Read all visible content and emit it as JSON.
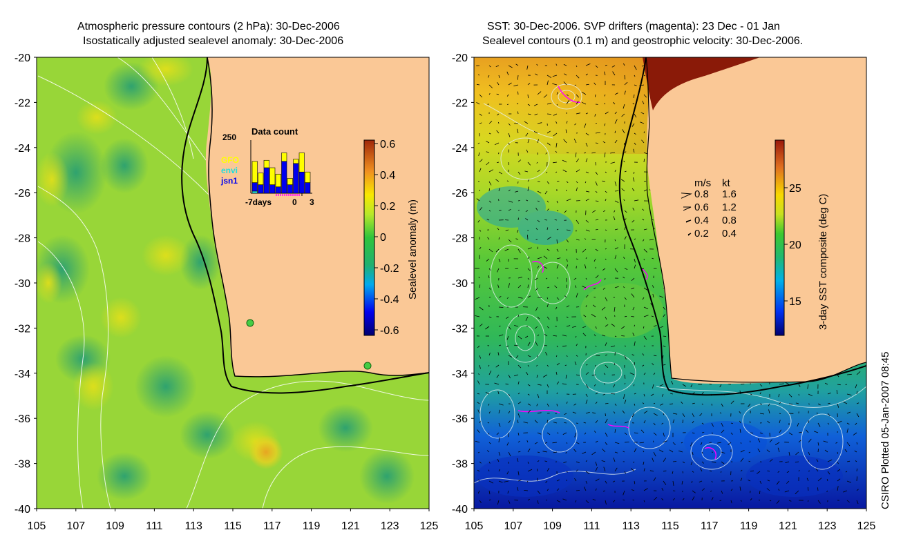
{
  "left_panel": {
    "title_line1": "Atmospheric pressure contours (2 hPa): 30-Dec-2006",
    "title_line2": "Isostatically adjusted sealevel anomaly: 30-Dec-2006",
    "lat_ticks": [
      "-20",
      "-22",
      "-24",
      "-26",
      "-28",
      "-30",
      "-32",
      "-34",
      "-36",
      "-38",
      "-40"
    ],
    "lon_ticks": [
      "105",
      "107",
      "109",
      "111",
      "113",
      "115",
      "117",
      "119",
      "121",
      "123",
      "125"
    ],
    "colorbar": {
      "label": "Sealevel anomaly (m)",
      "ticks": [
        "0.6",
        "0.4",
        "0.2",
        "0",
        "-0.2",
        "-0.4",
        "-0.6"
      ]
    },
    "inset": {
      "title": "Data count",
      "y_max_label": "250",
      "x_labels": [
        "-7days",
        "0",
        "3"
      ],
      "legend": [
        {
          "name": "GFO",
          "color": "#ffff00"
        },
        {
          "name": "envi",
          "color": "#22dddd"
        },
        {
          "name": "jsn1",
          "color": "#0000ee"
        }
      ],
      "counts": [
        {
          "jsn1": 40,
          "gfo": 100,
          "envi": 10
        },
        {
          "jsn1": 40,
          "gfo": 55,
          "envi": 0
        },
        {
          "jsn1": 120,
          "gfo": 35,
          "envi": 0
        },
        {
          "jsn1": 40,
          "gfo": 80,
          "envi": 0
        },
        {
          "jsn1": 30,
          "gfo": 60,
          "envi": 0
        },
        {
          "jsn1": 150,
          "gfo": 40,
          "envi": 0
        },
        {
          "jsn1": 40,
          "gfo": 30,
          "envi": 0
        },
        {
          "jsn1": 140,
          "gfo": 20,
          "envi": 0
        },
        {
          "jsn1": 100,
          "gfo": 90,
          "envi": 0
        },
        {
          "jsn1": 50,
          "gfo": 50,
          "envi": 0
        }
      ]
    }
  },
  "right_panel": {
    "title_line1": "SST: 30-Dec-2006. SVP drifters (magenta): 23 Dec - 01 Jan",
    "title_line2": "Sealevel contours (0.1 m) and geostrophic velocity: 30-Dec-2006.",
    "lat_ticks": [
      "-20",
      "-22",
      "-24",
      "-26",
      "-28",
      "-30",
      "-32",
      "-34",
      "-36",
      "-38",
      "-40"
    ],
    "lon_ticks": [
      "105",
      "107",
      "109",
      "111",
      "113",
      "115",
      "117",
      "119",
      "121",
      "123",
      "125"
    ],
    "colorbar": {
      "label": "3-day SST composite (deg C)",
      "ticks": [
        "25",
        "20",
        "15"
      ]
    },
    "velocity_legend": {
      "header_ms": "m/s",
      "header_kt": "kt",
      "rows": [
        {
          "ms": "0.8",
          "kt": "1.6"
        },
        {
          "ms": "0.6",
          "kt": "1.2"
        },
        {
          "ms": "0.4",
          "kt": "0.8"
        },
        {
          "ms": "0.2",
          "kt": "0.4"
        }
      ]
    }
  },
  "credit": "CSIRO Plotted 05-Jan-2007 08:45",
  "colors": {
    "land": "#fac896",
    "contour_pressure": "#ffffff",
    "contour_shelf": "#33cccc",
    "drifter": "#ff00ff",
    "coastline": "#000000"
  }
}
